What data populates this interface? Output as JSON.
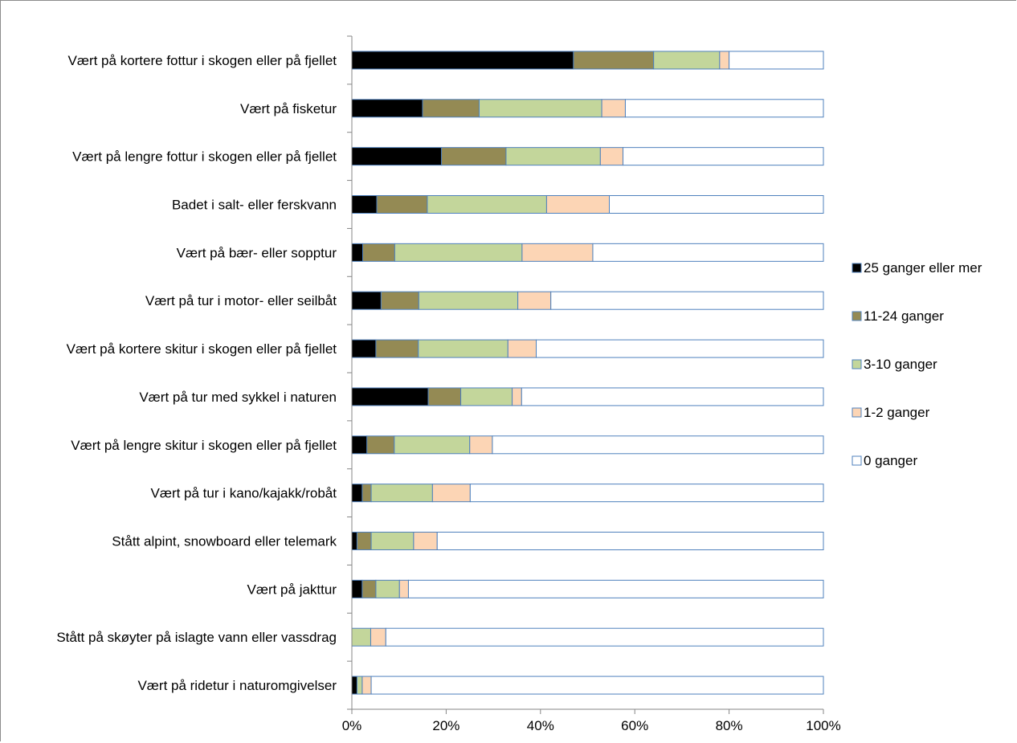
{
  "chart_data": {
    "type": "bar",
    "orientation": "horizontal",
    "stacked": "percent",
    "categories": [
      "Vært på kortere fottur i skogen eller på fjellet",
      "Vært på fisketur",
      "Vært på lengre fottur i skogen eller på fjellet",
      "Badet i salt- eller ferskvann",
      "Vært på bær- eller sopptur",
      "Vært på tur i motor- eller seilbåt",
      "Vært på kortere skitur i skogen eller på fjellet",
      "Vært på tur med sykkel i naturen",
      "Vært på lengre skitur i skogen eller på fjellet",
      "Vært på tur i kano/kajakk/robåt",
      "Stått alpint, snowboard eller telemark",
      "Vært på jakttur",
      "Stått på skøyter på islagte vann eller vassdrag",
      "Vært på ridetur i naturomgivelser"
    ],
    "series": [
      {
        "name": "25 ganger eller mer",
        "color": "#000000",
        "values": [
          47,
          15,
          19,
          5.3,
          2.3,
          6.2,
          5.1,
          16.2,
          3.2,
          2.2,
          1.1,
          2.2,
          0,
          1.1
        ]
      },
      {
        "name": "11-24 ganger",
        "color": "#948a54",
        "values": [
          17,
          12,
          13.7,
          10.7,
          6.8,
          8,
          9,
          6.9,
          5.8,
          1.9,
          3,
          2.9,
          0,
          0
        ]
      },
      {
        "name": "3-10 ganger",
        "color": "#c3d69b",
        "values": [
          14,
          26,
          20,
          25.3,
          27,
          21,
          19,
          10.9,
          16,
          13,
          9,
          5,
          4,
          1.1
        ]
      },
      {
        "name": "1-2 ganger",
        "color": "#fcd5b5",
        "values": [
          2,
          5,
          4.8,
          13.3,
          15,
          7,
          6,
          2,
          4.8,
          8,
          5,
          1.9,
          3.2,
          1.9
        ]
      },
      {
        "name": "0 ganger",
        "color": "#ffffff",
        "values": [
          20,
          42,
          42.5,
          45.4,
          48.9,
          57.8,
          60.9,
          64,
          70.2,
          74.9,
          81.9,
          88,
          92.8,
          95.9
        ]
      }
    ],
    "xlim": [
      0,
      100
    ],
    "xticks": [
      "0%",
      "20%",
      "40%",
      "60%",
      "80%",
      "100%"
    ],
    "title": "",
    "xlabel": "",
    "ylabel": "",
    "grid": false,
    "legend_position": "right",
    "bar_outline_color": "#4f81bd"
  }
}
